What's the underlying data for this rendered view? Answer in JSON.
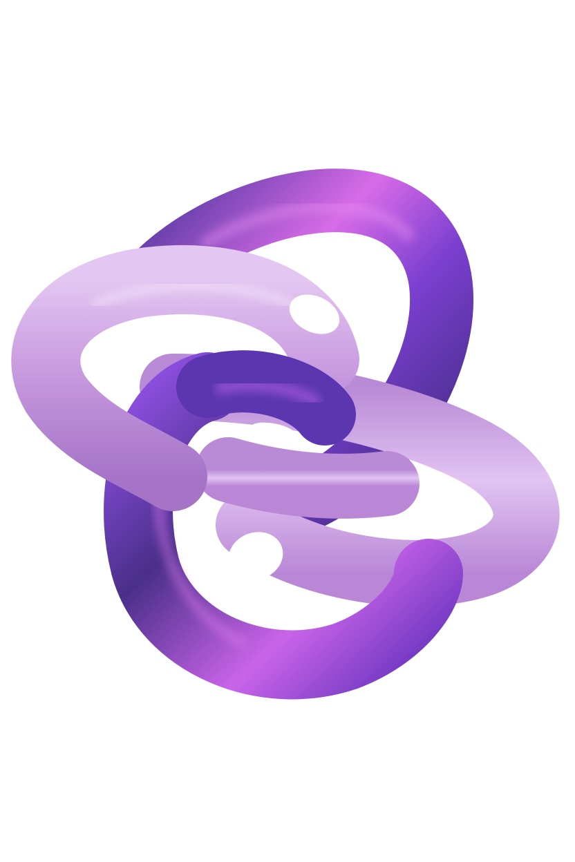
{
  "scene": {
    "subject": "torus-knot-3d-render",
    "background_color": "#ffffff",
    "colors": {
      "light_lilac": "#c99be0",
      "lilac_highlight": "#e6c8f2",
      "lilac_shadow": "#a574c7",
      "deep_violet": "#4a2f8a",
      "violet": "#7b3fd0",
      "magenta_highlight": "#d86be8"
    }
  }
}
